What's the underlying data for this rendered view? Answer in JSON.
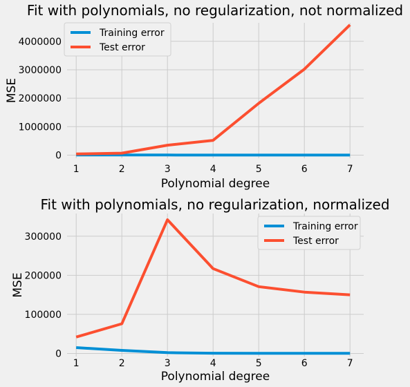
{
  "chart_data": [
    {
      "type": "line",
      "title": "Fit with polynomials, no regularization, not normalized",
      "xlabel": "Polynomial degree",
      "ylabel": "MSE",
      "x": [
        1,
        2,
        3,
        4,
        5,
        6,
        7
      ],
      "xticks": [
        "1",
        "2",
        "3",
        "4",
        "5",
        "6",
        "7"
      ],
      "ylim": [
        -110000,
        4650000
      ],
      "yticks": [
        0,
        1000000,
        2000000,
        3000000,
        4000000
      ],
      "ytick_labels": [
        "0",
        "1000000",
        "2000000",
        "3000000",
        "4000000"
      ],
      "grid": true,
      "legend_position": "top-left",
      "series": [
        {
          "name": "Training error",
          "color": "#008fd5",
          "values": [
            5000,
            4000,
            3000,
            2500,
            2200,
            2000,
            1800
          ]
        },
        {
          "name": "Test error",
          "color": "#fc4f30",
          "values": [
            40000,
            70000,
            350000,
            520000,
            1820000,
            3020000,
            4580000
          ]
        }
      ]
    },
    {
      "type": "line",
      "title": "Fit with polynomials, no regularization, normalized",
      "xlabel": "Polynomial degree",
      "ylabel": "MSE",
      "x": [
        1,
        2,
        3,
        4,
        5,
        6,
        7
      ],
      "xticks": [
        "1",
        "2",
        "3",
        "4",
        "5",
        "6",
        "7"
      ],
      "ylim": [
        -8000,
        358000
      ],
      "yticks": [
        0,
        100000,
        200000,
        300000
      ],
      "ytick_labels": [
        "0",
        "100000",
        "200000",
        "300000"
      ],
      "grid": true,
      "legend_position": "top-right",
      "series": [
        {
          "name": "Training error",
          "color": "#008fd5",
          "values": [
            15000,
            8000,
            2000,
            700,
            500,
            400,
            300
          ]
        },
        {
          "name": "Test error",
          "color": "#fc4f30",
          "values": [
            42000,
            76000,
            342000,
            217000,
            171000,
            157000,
            150000
          ]
        }
      ]
    }
  ]
}
